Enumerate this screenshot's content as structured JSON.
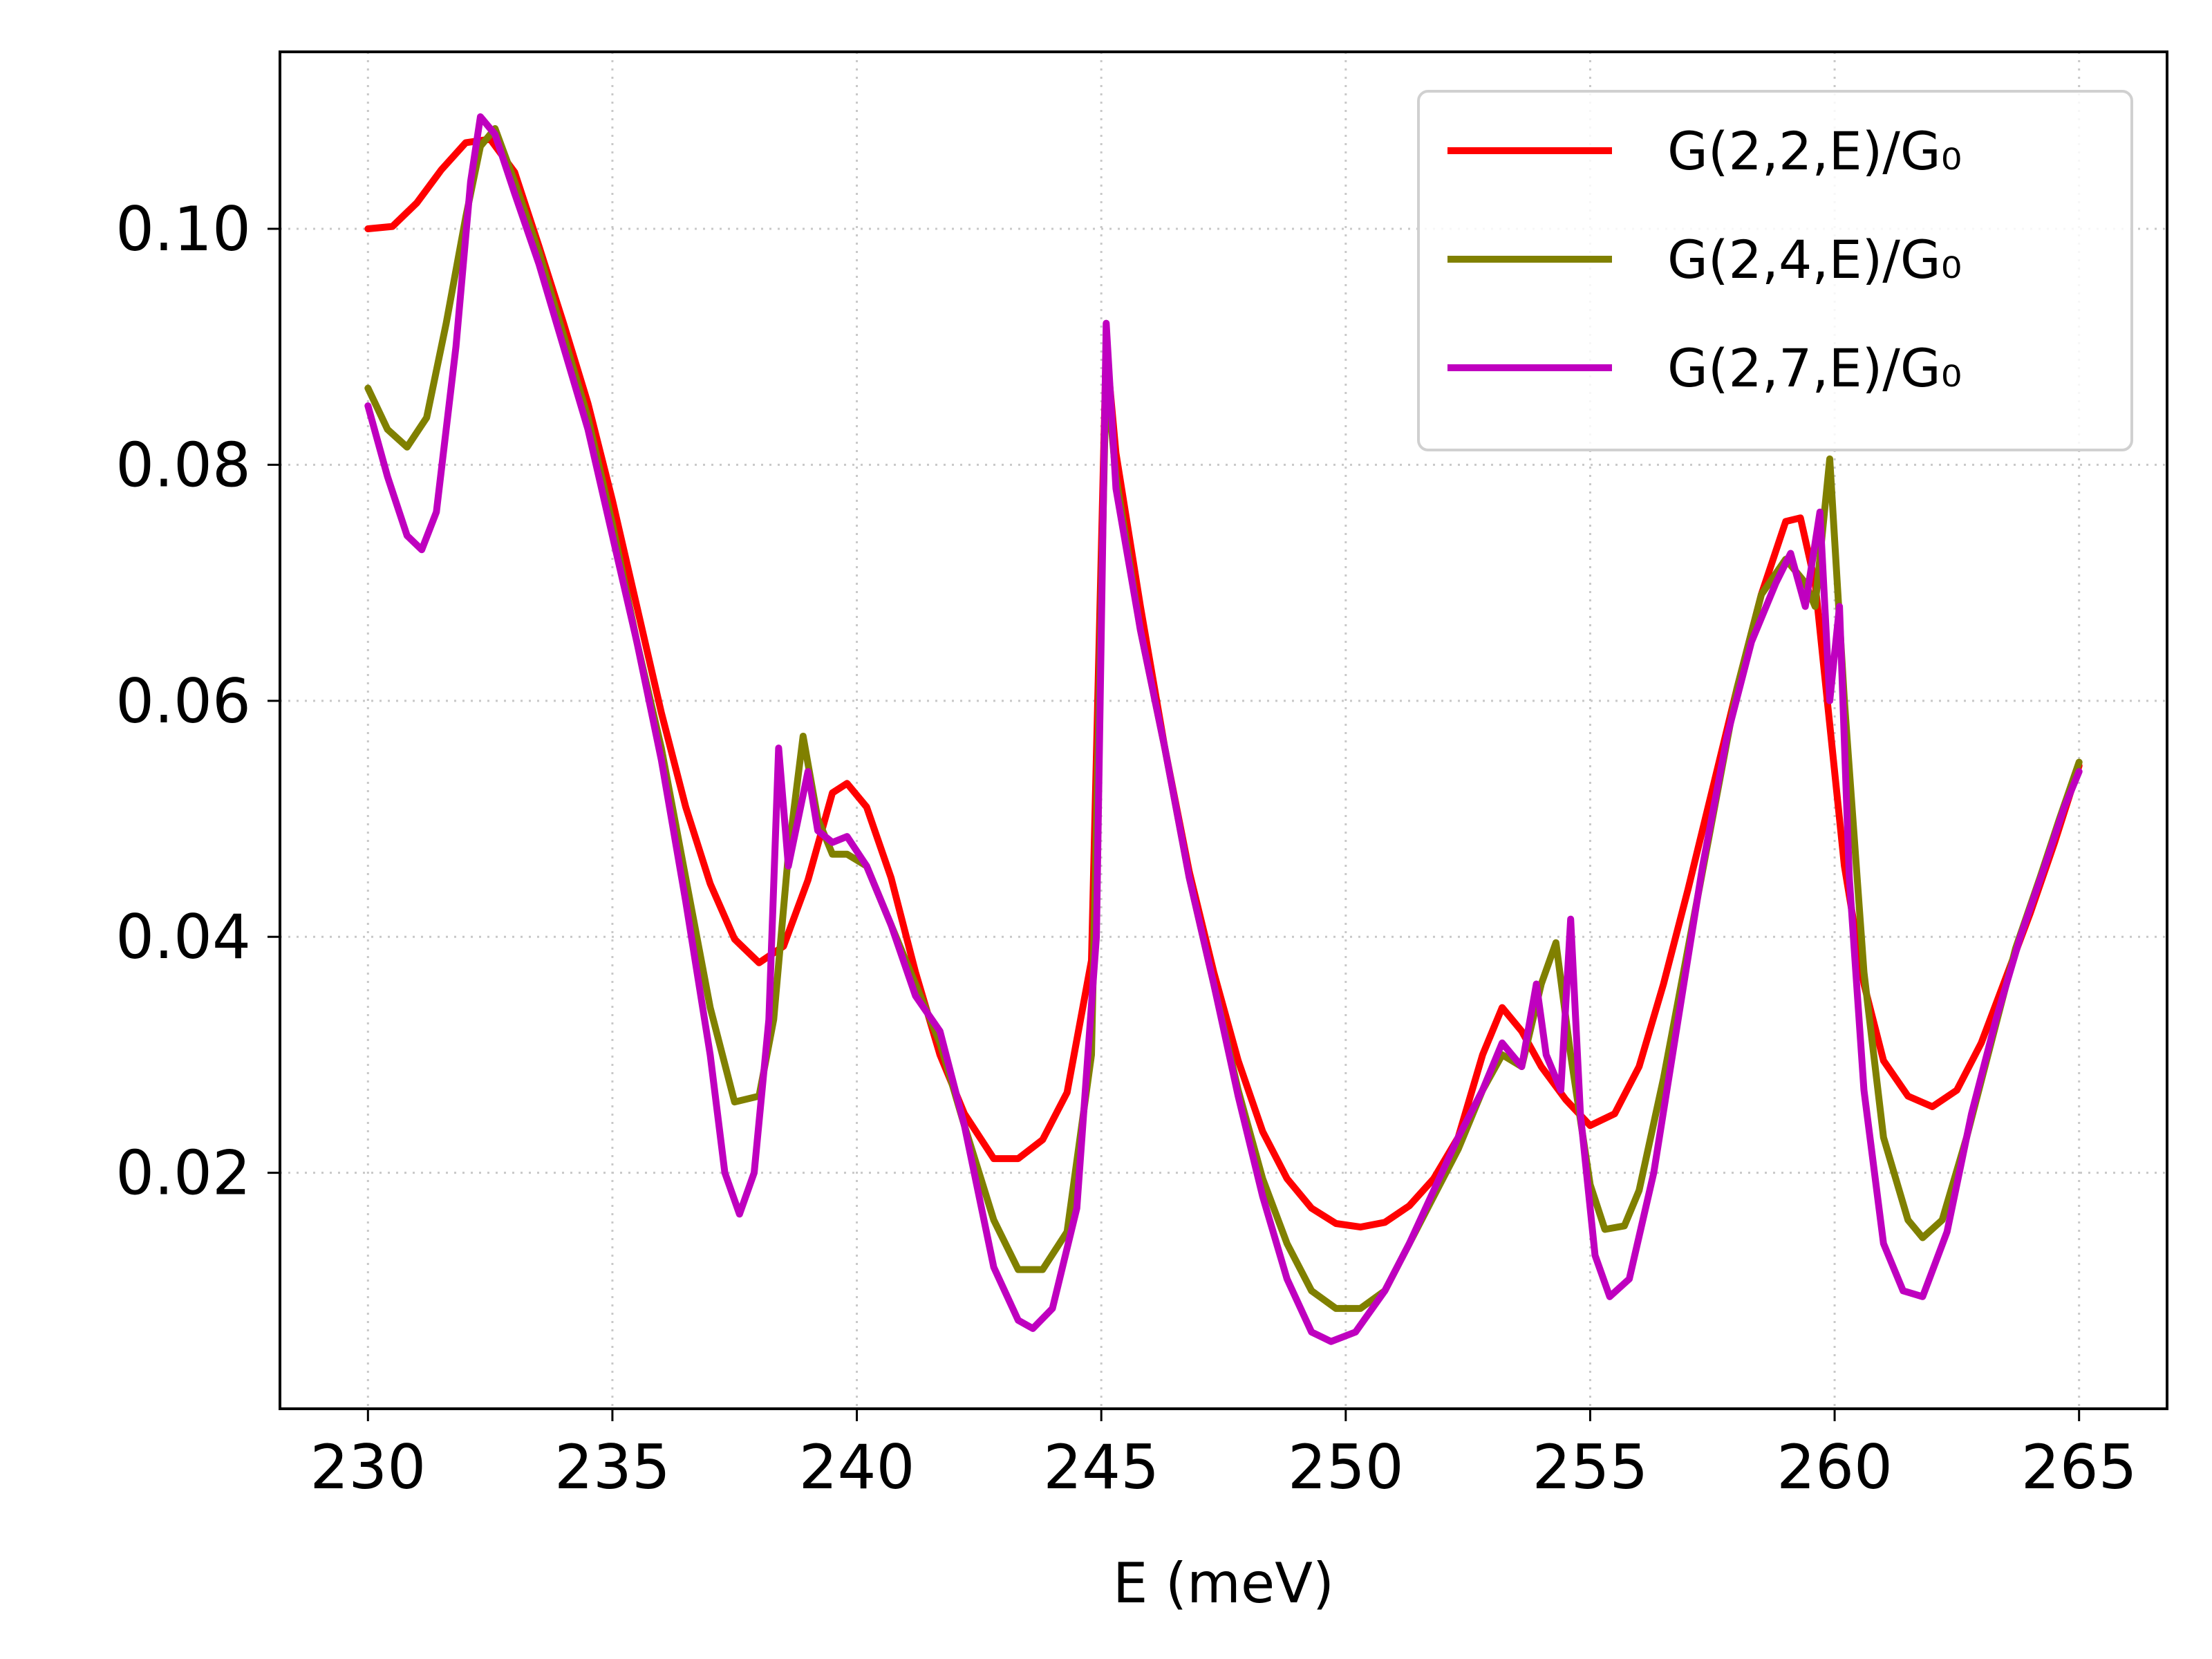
{
  "chart_data": {
    "type": "line",
    "title": "",
    "xlabel": "E (meV)",
    "ylabel": "",
    "xlim": [
      228.2,
      266.8
    ],
    "ylim": [
      0.0,
      0.115
    ],
    "xticks": [
      230,
      235,
      240,
      245,
      250,
      255,
      260,
      265
    ],
    "xtick_labels": [
      "230",
      "235",
      "240",
      "245",
      "250",
      "255",
      "260",
      "265"
    ],
    "yticks": [
      0.02,
      0.04,
      0.06,
      0.08,
      0.1
    ],
    "ytick_labels": [
      "0.02",
      "0.04",
      "0.06",
      "0.08",
      "0.10"
    ],
    "grid": true,
    "legend_position": "top-right",
    "series": [
      {
        "name": "G(2,2,E)/G₀",
        "color": "#ff0000",
        "points": [
          [
            230,
            0.1
          ],
          [
            230.5,
            0.1002
          ],
          [
            231,
            0.1022
          ],
          [
            231.5,
            0.105
          ],
          [
            232,
            0.1073
          ],
          [
            232.5,
            0.1076
          ],
          [
            233,
            0.1048
          ],
          [
            233.5,
            0.0985
          ],
          [
            234,
            0.092
          ],
          [
            234.5,
            0.0852
          ],
          [
            235,
            0.077
          ],
          [
            235.5,
            0.068
          ],
          [
            236,
            0.059
          ],
          [
            236.5,
            0.051
          ],
          [
            237,
            0.0445
          ],
          [
            237.5,
            0.0398
          ],
          [
            238,
            0.0378
          ],
          [
            238.5,
            0.0392
          ],
          [
            239,
            0.0448
          ],
          [
            239.5,
            0.0522
          ],
          [
            239.8,
            0.053
          ],
          [
            240.2,
            0.051
          ],
          [
            240.7,
            0.045
          ],
          [
            241.2,
            0.037
          ],
          [
            241.7,
            0.03
          ],
          [
            242.2,
            0.025
          ],
          [
            242.8,
            0.0212
          ],
          [
            243.3,
            0.0212
          ],
          [
            243.8,
            0.0228
          ],
          [
            244.3,
            0.0268
          ],
          [
            244.8,
            0.038
          ],
          [
            245.1,
            0.09
          ],
          [
            245.3,
            0.081
          ],
          [
            245.8,
            0.068
          ],
          [
            246.3,
            0.056
          ],
          [
            246.8,
            0.0455
          ],
          [
            247.3,
            0.037
          ],
          [
            247.8,
            0.0295
          ],
          [
            248.3,
            0.0235
          ],
          [
            248.8,
            0.0195
          ],
          [
            249.3,
            0.017
          ],
          [
            249.8,
            0.0157
          ],
          [
            250.3,
            0.0154
          ],
          [
            250.8,
            0.0158
          ],
          [
            251.3,
            0.0172
          ],
          [
            251.8,
            0.0195
          ],
          [
            252.3,
            0.023
          ],
          [
            252.8,
            0.03
          ],
          [
            253.2,
            0.034
          ],
          [
            253.6,
            0.032
          ],
          [
            254.0,
            0.029
          ],
          [
            254.5,
            0.0262
          ],
          [
            255.0,
            0.024
          ],
          [
            255.5,
            0.025
          ],
          [
            256.0,
            0.029
          ],
          [
            256.5,
            0.036
          ],
          [
            257.0,
            0.044
          ],
          [
            257.5,
            0.0525
          ],
          [
            258.0,
            0.061
          ],
          [
            258.5,
            0.069
          ],
          [
            259.0,
            0.0752
          ],
          [
            259.3,
            0.0755
          ],
          [
            259.6,
            0.07
          ],
          [
            259.9,
            0.058
          ],
          [
            260.2,
            0.046
          ],
          [
            260.6,
            0.036
          ],
          [
            261.0,
            0.0295
          ],
          [
            261.5,
            0.0265
          ],
          [
            262.0,
            0.0256
          ],
          [
            262.5,
            0.027
          ],
          [
            263.0,
            0.031
          ],
          [
            263.5,
            0.0365
          ],
          [
            264.0,
            0.042
          ],
          [
            264.5,
            0.048
          ],
          [
            265.0,
            0.0545
          ]
        ]
      },
      {
        "name": "G(2,4,E)/G₀",
        "color": "#808000",
        "points": [
          [
            230,
            0.0865
          ],
          [
            230.4,
            0.083
          ],
          [
            230.8,
            0.0815
          ],
          [
            231.2,
            0.084
          ],
          [
            231.6,
            0.092
          ],
          [
            232.0,
            0.101
          ],
          [
            232.3,
            0.107
          ],
          [
            232.6,
            0.1085
          ],
          [
            233.0,
            0.104
          ],
          [
            233.5,
            0.098
          ],
          [
            234,
            0.091
          ],
          [
            234.5,
            0.084
          ],
          [
            235,
            0.075
          ],
          [
            235.5,
            0.065
          ],
          [
            236,
            0.056
          ],
          [
            236.5,
            0.045
          ],
          [
            237,
            0.034
          ],
          [
            237.5,
            0.026
          ],
          [
            238,
            0.0265
          ],
          [
            238.3,
            0.033
          ],
          [
            238.6,
            0.047
          ],
          [
            238.9,
            0.057
          ],
          [
            239.2,
            0.05
          ],
          [
            239.5,
            0.047
          ],
          [
            239.8,
            0.047
          ],
          [
            240.2,
            0.046
          ],
          [
            240.7,
            0.041
          ],
          [
            241.2,
            0.036
          ],
          [
            241.7,
            0.031
          ],
          [
            242.2,
            0.024
          ],
          [
            242.8,
            0.016
          ],
          [
            243.3,
            0.0118
          ],
          [
            243.8,
            0.0118
          ],
          [
            244.3,
            0.015
          ],
          [
            244.8,
            0.03
          ],
          [
            245.1,
            0.088
          ],
          [
            245.3,
            0.079
          ],
          [
            245.8,
            0.066
          ],
          [
            246.3,
            0.056
          ],
          [
            246.8,
            0.045
          ],
          [
            247.3,
            0.036
          ],
          [
            247.8,
            0.027
          ],
          [
            248.3,
            0.0195
          ],
          [
            248.8,
            0.014
          ],
          [
            249.3,
            0.01
          ],
          [
            249.8,
            0.0085
          ],
          [
            250.3,
            0.0085
          ],
          [
            250.8,
            0.01
          ],
          [
            251.3,
            0.014
          ],
          [
            251.8,
            0.018
          ],
          [
            252.3,
            0.022
          ],
          [
            252.8,
            0.027
          ],
          [
            253.2,
            0.03
          ],
          [
            253.6,
            0.029
          ],
          [
            254.0,
            0.036
          ],
          [
            254.3,
            0.0395
          ],
          [
            254.6,
            0.03
          ],
          [
            255.0,
            0.019
          ],
          [
            255.3,
            0.0152
          ],
          [
            255.7,
            0.0155
          ],
          [
            256.0,
            0.0185
          ],
          [
            256.5,
            0.028
          ],
          [
            257.0,
            0.039
          ],
          [
            257.5,
            0.05
          ],
          [
            258.0,
            0.061
          ],
          [
            258.5,
            0.069
          ],
          [
            259.0,
            0.072
          ],
          [
            259.4,
            0.07
          ],
          [
            259.6,
            0.068
          ],
          [
            259.9,
            0.0805
          ],
          [
            260.2,
            0.06
          ],
          [
            260.6,
            0.037
          ],
          [
            261.0,
            0.023
          ],
          [
            261.5,
            0.016
          ],
          [
            261.8,
            0.0145
          ],
          [
            262.2,
            0.016
          ],
          [
            262.7,
            0.023
          ],
          [
            263.2,
            0.031
          ],
          [
            263.7,
            0.039
          ],
          [
            264.2,
            0.045
          ],
          [
            264.6,
            0.05
          ],
          [
            265.0,
            0.0548
          ]
        ]
      },
      {
        "name": "G(2,7,E)/G₀",
        "color": "#bf00bf",
        "points": [
          [
            230,
            0.085
          ],
          [
            230.4,
            0.079
          ],
          [
            230.8,
            0.074
          ],
          [
            231.1,
            0.0728
          ],
          [
            231.4,
            0.076
          ],
          [
            231.8,
            0.09
          ],
          [
            232.1,
            0.104
          ],
          [
            232.3,
            0.1095
          ],
          [
            232.6,
            0.108
          ],
          [
            233.0,
            0.103
          ],
          [
            233.5,
            0.097
          ],
          [
            234,
            0.09
          ],
          [
            234.5,
            0.083
          ],
          [
            235,
            0.074
          ],
          [
            235.5,
            0.065
          ],
          [
            236,
            0.055
          ],
          [
            236.5,
            0.043
          ],
          [
            237,
            0.03
          ],
          [
            237.3,
            0.02
          ],
          [
            237.6,
            0.0165
          ],
          [
            237.9,
            0.02
          ],
          [
            238.2,
            0.033
          ],
          [
            238.4,
            0.056
          ],
          [
            238.6,
            0.046
          ],
          [
            238.8,
            0.05
          ],
          [
            239.0,
            0.054
          ],
          [
            239.2,
            0.049
          ],
          [
            239.5,
            0.048
          ],
          [
            239.8,
            0.0485
          ],
          [
            240.2,
            0.046
          ],
          [
            240.7,
            0.041
          ],
          [
            241.2,
            0.035
          ],
          [
            241.7,
            0.032
          ],
          [
            242.2,
            0.024
          ],
          [
            242.8,
            0.012
          ],
          [
            243.3,
            0.0075
          ],
          [
            243.6,
            0.0068
          ],
          [
            244.0,
            0.0085
          ],
          [
            244.5,
            0.017
          ],
          [
            244.9,
            0.04
          ],
          [
            245.1,
            0.092
          ],
          [
            245.3,
            0.078
          ],
          [
            245.8,
            0.066
          ],
          [
            246.3,
            0.056
          ],
          [
            246.8,
            0.045
          ],
          [
            247.3,
            0.036
          ],
          [
            247.8,
            0.0265
          ],
          [
            248.3,
            0.018
          ],
          [
            248.8,
            0.011
          ],
          [
            249.3,
            0.0065
          ],
          [
            249.7,
            0.0057
          ],
          [
            250.2,
            0.0065
          ],
          [
            250.8,
            0.01
          ],
          [
            251.3,
            0.014
          ],
          [
            251.8,
            0.0185
          ],
          [
            252.3,
            0.023
          ],
          [
            252.8,
            0.027
          ],
          [
            253.2,
            0.031
          ],
          [
            253.6,
            0.029
          ],
          [
            253.9,
            0.036
          ],
          [
            254.1,
            0.03
          ],
          [
            254.4,
            0.027
          ],
          [
            254.6,
            0.0415
          ],
          [
            254.8,
            0.025
          ],
          [
            255.1,
            0.013
          ],
          [
            255.4,
            0.0095
          ],
          [
            255.8,
            0.011
          ],
          [
            256.3,
            0.02
          ],
          [
            256.8,
            0.033
          ],
          [
            257.3,
            0.046
          ],
          [
            257.8,
            0.057
          ],
          [
            258.3,
            0.065
          ],
          [
            258.8,
            0.07
          ],
          [
            259.1,
            0.0725
          ],
          [
            259.4,
            0.068
          ],
          [
            259.7,
            0.076
          ],
          [
            259.9,
            0.06
          ],
          [
            260.1,
            0.068
          ],
          [
            260.3,
            0.045
          ],
          [
            260.6,
            0.027
          ],
          [
            261.0,
            0.014
          ],
          [
            261.4,
            0.01
          ],
          [
            261.8,
            0.0095
          ],
          [
            262.3,
            0.015
          ],
          [
            262.8,
            0.025
          ],
          [
            263.3,
            0.033
          ],
          [
            263.8,
            0.04
          ],
          [
            264.3,
            0.046
          ],
          [
            264.7,
            0.051
          ],
          [
            265.0,
            0.054
          ]
        ]
      }
    ]
  }
}
